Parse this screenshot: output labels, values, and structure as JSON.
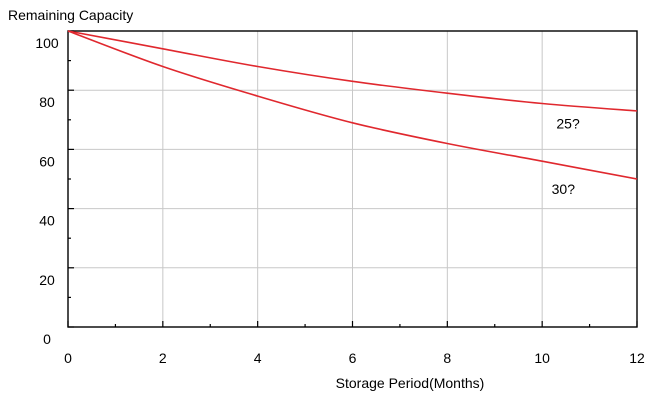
{
  "chart_data": {
    "type": "line",
    "title": "",
    "xlabel": "Storage Period(Months)",
    "ylabel": "Remaining Capacity",
    "xlim": [
      0,
      12
    ],
    "ylim": [
      0,
      100
    ],
    "x_ticks": [
      0,
      2,
      4,
      6,
      8,
      10,
      12
    ],
    "y_ticks": [
      0,
      20,
      40,
      60,
      80,
      100
    ],
    "x_tick_labels": [
      "0",
      "2",
      "4",
      "6",
      "8",
      "10",
      "12"
    ],
    "y_tick_labels": [
      "0",
      "20",
      "40",
      "60",
      "80",
      "100"
    ],
    "grid": true,
    "legend": "none",
    "series": [
      {
        "label": "25?",
        "color": "#e0282e",
        "x": [
          0,
          2,
          4,
          6,
          8,
          10,
          12
        ],
        "y": [
          100,
          94,
          88,
          83,
          79,
          75.5,
          73
        ]
      },
      {
        "label": "30?",
        "color": "#e0282e",
        "x": [
          0,
          2,
          4,
          6,
          8,
          10,
          12
        ],
        "y": [
          100,
          88,
          78,
          69,
          62,
          56,
          50
        ]
      }
    ]
  }
}
